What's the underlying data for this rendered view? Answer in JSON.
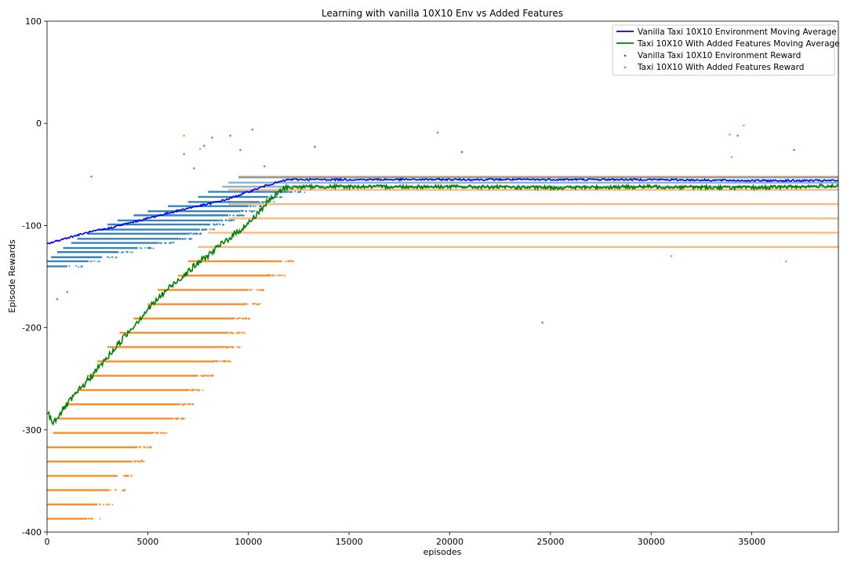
{
  "chart_data": {
    "type": "line",
    "title": "Learning with vanilla 10X10 Env vs Added Features",
    "xlabel": "episodes",
    "ylabel": "Episode Rewards",
    "xlim": [
      0,
      39300
    ],
    "ylim": [
      -400,
      100
    ],
    "xticks": [
      0,
      5000,
      10000,
      15000,
      20000,
      25000,
      30000,
      35000
    ],
    "yticks": [
      100,
      0,
      -100,
      -200,
      -300,
      -400
    ],
    "legend_position": "top-right",
    "grid": false,
    "series": [
      {
        "name": "Vanilla Taxi 10X10 Environment Moving Average",
        "kind": "line",
        "color": "#0000ff",
        "x": [
          0,
          1000,
          2000,
          3000,
          4000,
          5000,
          6000,
          7000,
          8000,
          9000,
          10000,
          11000,
          12000,
          14000,
          20000,
          25000,
          30000,
          35000,
          39300
        ],
        "y": [
          -118,
          -112,
          -107,
          -103,
          -98,
          -93,
          -88,
          -83,
          -79,
          -74,
          -67,
          -60,
          -55,
          -55,
          -55,
          -55,
          -55,
          -56,
          -56
        ]
      },
      {
        "name": "Taxi 10X10 With Added Features Moving Average",
        "kind": "line",
        "color": "#008000",
        "x": [
          0,
          300,
          1000,
          2000,
          3000,
          4000,
          5000,
          6000,
          7000,
          8000,
          9000,
          10000,
          11000,
          11800,
          13000,
          20000,
          25000,
          30000,
          35000,
          39300
        ],
        "y": [
          -282,
          -293,
          -275,
          -252,
          -229,
          -205,
          -182,
          -162,
          -145,
          -129,
          -113,
          -98,
          -76,
          -63,
          -62,
          -62,
          -63,
          -62,
          -63,
          -61
        ]
      },
      {
        "name": "Vanilla Taxi 10X10 Environment Reward",
        "kind": "scatter",
        "color": "#1f77b4",
        "band_levels": [
          -53,
          -58,
          -62,
          -67,
          -72,
          -77,
          -81,
          -86,
          -90,
          -95,
          -99,
          -104,
          -108,
          -113,
          -117,
          -122,
          -126,
          -131,
          -135,
          -140
        ],
        "band_start": [
          9500,
          9000,
          8700,
          8000,
          7500,
          7000,
          6000,
          5000,
          4300,
          3500,
          3000,
          2500,
          2000,
          1500,
          1200,
          800,
          500,
          200,
          0,
          0
        ],
        "band_end": [
          39300,
          39300,
          39300,
          12000,
          11000,
          10500,
          10000,
          9600,
          9000,
          8500,
          8000,
          7500,
          7000,
          6500,
          5500,
          4500,
          3500,
          2700,
          2000,
          1000
        ],
        "outliers": [
          [
            6800,
            -30
          ],
          [
            7800,
            -22
          ],
          [
            8200,
            -14
          ],
          [
            9100,
            -12
          ],
          [
            9600,
            -26
          ],
          [
            10200,
            -6
          ],
          [
            13300,
            -23
          ],
          [
            19400,
            -9
          ],
          [
            20600,
            -28
          ],
          [
            24600,
            -195
          ],
          [
            34300,
            -12
          ],
          [
            37100,
            -26
          ],
          [
            7300,
            -44
          ],
          [
            10800,
            -42
          ],
          [
            2200,
            -52
          ],
          [
            1000,
            -165
          ],
          [
            500,
            -172
          ]
        ]
      },
      {
        "name": "Taxi 10X10 With Added Features Reward",
        "kind": "scatter",
        "color": "#ff7f0e",
        "band_levels": [
          -52,
          -65,
          -79,
          -93,
          -107,
          -121,
          -135,
          -149,
          -163,
          -177,
          -191,
          -205,
          -219,
          -233,
          -247,
          -261,
          -275,
          -289,
          -303,
          -317,
          -331,
          -345,
          -359,
          -373,
          -387
        ],
        "band_start": [
          9500,
          9000,
          9000,
          9000,
          8000,
          7500,
          7000,
          6500,
          5500,
          5000,
          4300,
          3600,
          3000,
          2500,
          2000,
          1500,
          1000,
          600,
          300,
          0,
          0,
          0,
          0,
          0,
          0
        ],
        "band_end": [
          39300,
          39300,
          39300,
          39300,
          39300,
          39300,
          11500,
          11000,
          10000,
          9800,
          9300,
          9000,
          8800,
          8300,
          7500,
          7000,
          6500,
          6200,
          5200,
          4500,
          4200,
          3500,
          3100,
          2500,
          2000
        ],
        "outliers": [
          [
            6800,
            -12
          ],
          [
            7600,
            -25
          ],
          [
            20600,
            -28
          ],
          [
            34600,
            -2
          ],
          [
            34000,
            -33
          ],
          [
            33900,
            -11
          ],
          [
            36700,
            -135
          ],
          [
            31000,
            -130
          ],
          [
            11000,
            -148
          ],
          [
            4700,
            -330
          ]
        ]
      }
    ]
  }
}
